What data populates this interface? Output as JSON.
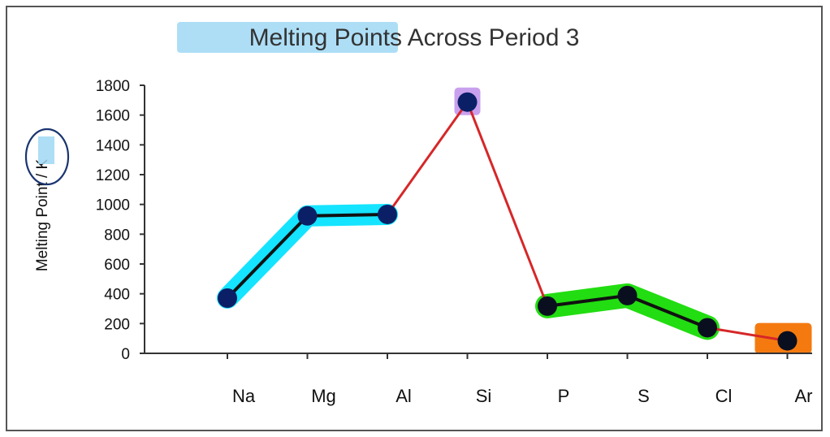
{
  "chart_data": {
    "type": "line",
    "title": "Melting Points Across Period 3",
    "xlabel": "",
    "ylabel": "Melting Point / K",
    "categories": [
      "Na",
      "Mg",
      "Al",
      "Si",
      "P",
      "S",
      "Cl",
      "Ar"
    ],
    "series": [
      {
        "values": [
          371,
          923,
          933,
          1687,
          317,
          388,
          172,
          84
        ]
      }
    ],
    "ylim": [
      0,
      1800
    ],
    "yticks": [
      0,
      200,
      400,
      600,
      800,
      1000,
      1200,
      1400,
      1600,
      1800
    ],
    "grid": false,
    "legend": "none",
    "colors": {
      "line": "#d62728",
      "marker": "#0b1f66",
      "segment_highlight": "#111111",
      "highlight_cyan": "#14e4ff",
      "highlight_green": "#22dd11",
      "highlight_purple": "#c9a0ee",
      "highlight_orange": "#f47a10",
      "title_highlight": "#9fd8f5",
      "annotation_circle": "#1a3570"
    }
  }
}
